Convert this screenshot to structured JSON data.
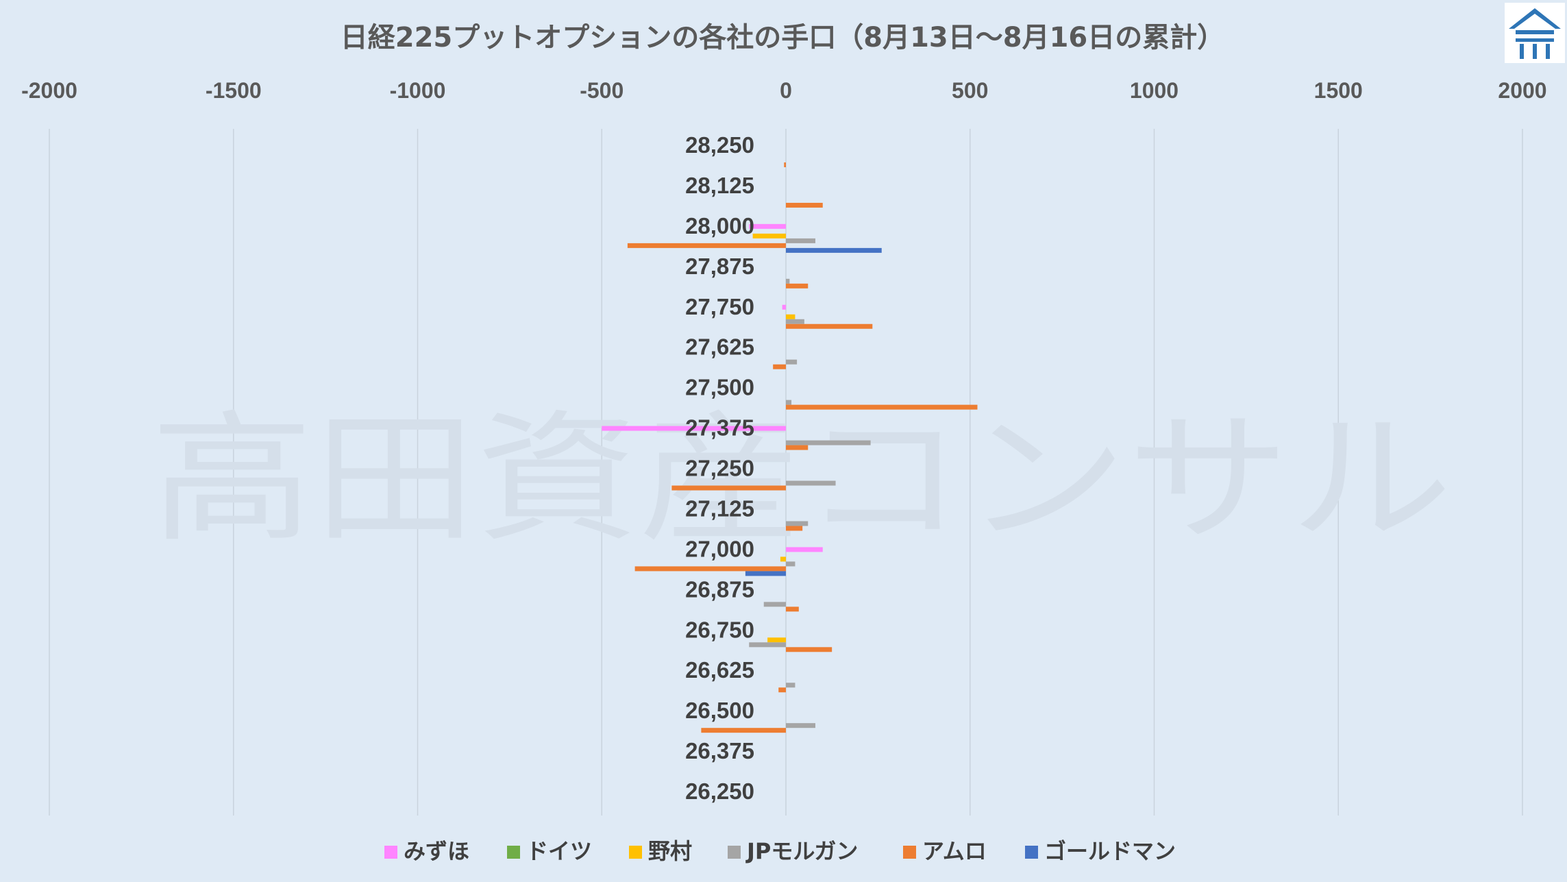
{
  "chart_data": {
    "type": "bar",
    "orientation": "horizontal",
    "title": "日経225プットオプションの各社の手口（8月13日～8月16日の累計）",
    "xlim": [
      -2000,
      2000
    ],
    "x_ticks": [
      "-2000",
      "-1500",
      "-1000",
      "-500",
      "0",
      "500",
      "1000",
      "1500",
      "2000"
    ],
    "x_tick_values": [
      -2000,
      -1500,
      -1000,
      -500,
      0,
      500,
      1000,
      1500,
      2000
    ],
    "grid": true,
    "legend_position": "bottom",
    "categories": [
      "28,250",
      "28,125",
      "28,000",
      "27,875",
      "27,750",
      "27,625",
      "27,500",
      "27,375",
      "27,250",
      "27,125",
      "27,000",
      "26,875",
      "26,750",
      "26,625",
      "26,500",
      "26,375",
      "26,250"
    ],
    "series": [
      {
        "name": "みずほ",
        "color": "#ff85ff",
        "values": [
          0,
          0,
          -100,
          0,
          -10,
          0,
          0,
          -500,
          0,
          0,
          100,
          0,
          0,
          0,
          0,
          0,
          0
        ]
      },
      {
        "name": "ドイツ",
        "color": "#70ad47",
        "values": [
          0,
          0,
          0,
          0,
          0,
          0,
          0,
          0,
          0,
          0,
          0,
          0,
          0,
          0,
          0,
          0,
          0
        ]
      },
      {
        "name": "野村",
        "color": "#ffc000",
        "values": [
          0,
          0,
          -90,
          0,
          25,
          0,
          0,
          0,
          0,
          0,
          -15,
          0,
          -50,
          0,
          0,
          0,
          0
        ]
      },
      {
        "name": "JPモルガン",
        "color": "#a5a5a5",
        "values": [
          0,
          0,
          80,
          10,
          50,
          30,
          15,
          230,
          135,
          60,
          25,
          -60,
          -100,
          25,
          80,
          0,
          0
        ]
      },
      {
        "name": "アムロ",
        "color": "#ed7d31",
        "values": [
          -5,
          100,
          -430,
          60,
          235,
          -35,
          520,
          60,
          -310,
          45,
          -410,
          35,
          125,
          -20,
          -230,
          0,
          0
        ]
      },
      {
        "name": "ゴールドマン",
        "color": "#4472c4",
        "values": [
          0,
          0,
          260,
          0,
          0,
          0,
          0,
          0,
          0,
          0,
          -110,
          0,
          0,
          0,
          0,
          0,
          0
        ]
      }
    ]
  },
  "watermark": "高田資産コンサル",
  "logo": {
    "icon": "house-logo-icon",
    "color": "#2e75b6"
  }
}
